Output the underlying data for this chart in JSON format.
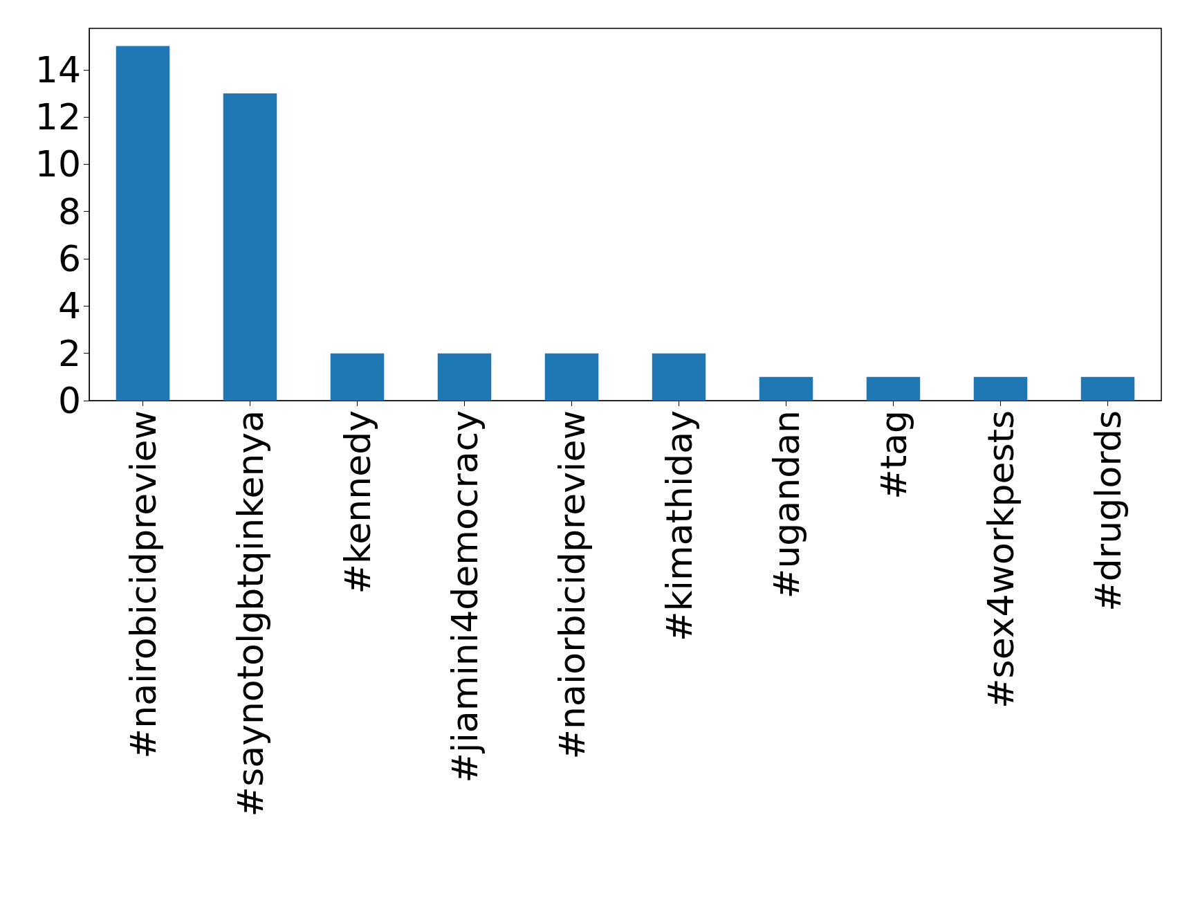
{
  "chart_data": {
    "type": "bar",
    "categories": [
      "#nairobicidpreview",
      "#saynotolgbtqinkenya",
      "#kennedy",
      "#jiamini4democracy",
      "#naiorbicidpreview",
      "#kimathiday",
      "#ugandan",
      "#tag",
      "#sex4workpests",
      "#druglords"
    ],
    "values": [
      15,
      13,
      2,
      2,
      2,
      2,
      1,
      1,
      1,
      1
    ],
    "color": "#1f77b4",
    "ylim": [
      0,
      15.75
    ],
    "yticks": [
      0,
      2,
      4,
      6,
      8,
      10,
      12,
      14
    ]
  }
}
